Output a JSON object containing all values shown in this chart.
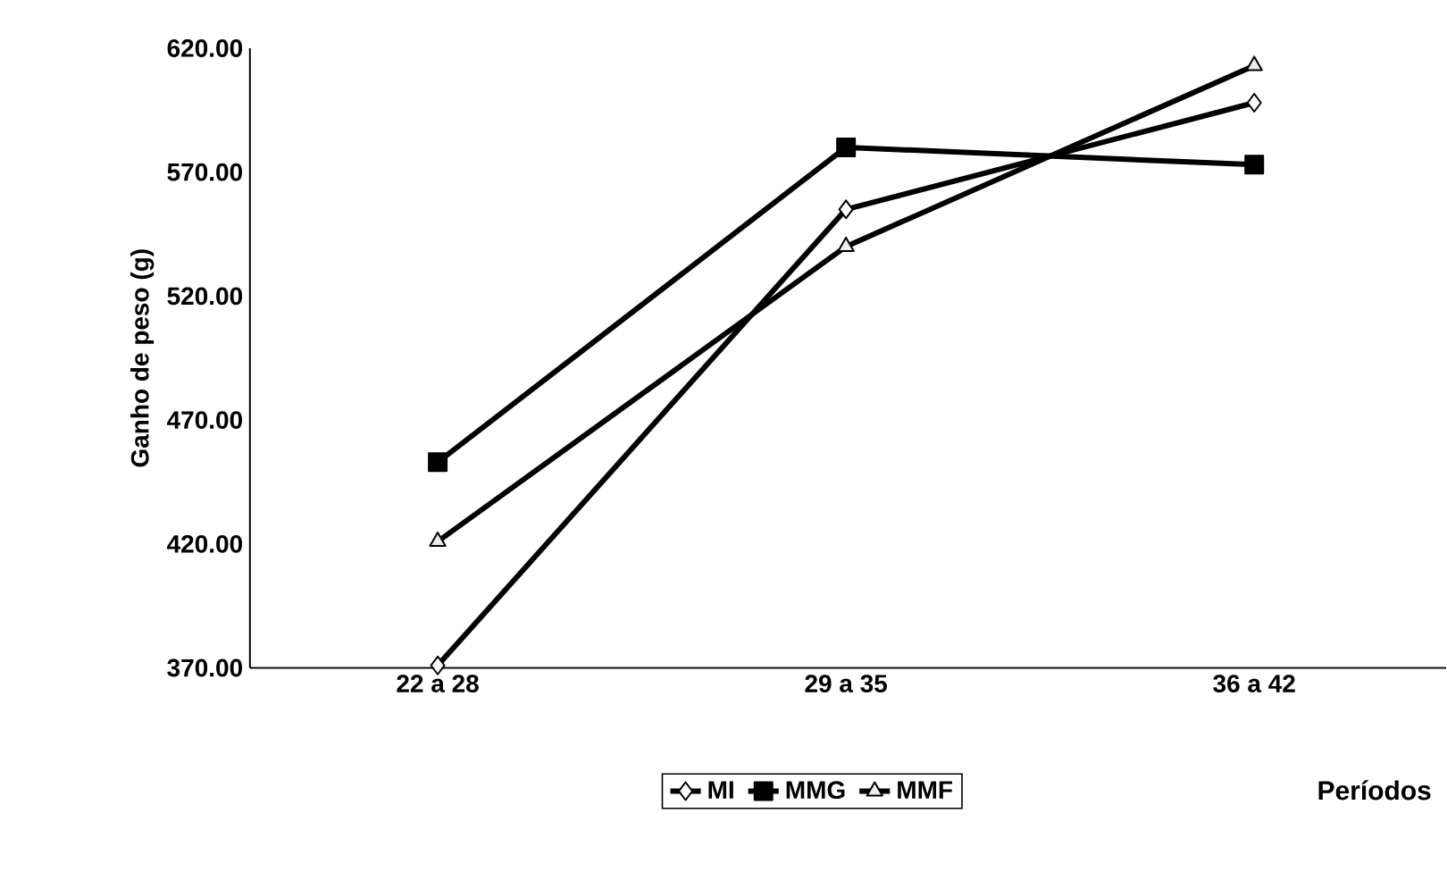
{
  "chart_data": {
    "type": "line",
    "xlabel": "Períodos",
    "ylabel": "Ganho de peso (g)",
    "categories": [
      "22 a 28",
      "29 a 35",
      "36 a 42"
    ],
    "series": [
      {
        "name": "MI",
        "color": "#000000",
        "marker": "diamond",
        "values": [
          371,
          555,
          598
        ]
      },
      {
        "name": "MMG",
        "color": "#000000",
        "marker": "square",
        "values": [
          453,
          580,
          573
        ]
      },
      {
        "name": "MMF",
        "color": "#000000",
        "marker": "triangle",
        "values": [
          421,
          540,
          613
        ]
      }
    ],
    "ylim": [
      370,
      620
    ],
    "yticks": [
      {
        "value": 370,
        "label": "370.00"
      },
      {
        "value": 420,
        "label": "420.00"
      },
      {
        "value": 470,
        "label": "470.00"
      },
      {
        "value": 520,
        "label": "520.00"
      },
      {
        "value": 570,
        "label": "570.00"
      },
      {
        "value": 620,
        "label": "620.00"
      }
    ],
    "grid": false,
    "legend": "bottom",
    "line_style": "solid"
  }
}
